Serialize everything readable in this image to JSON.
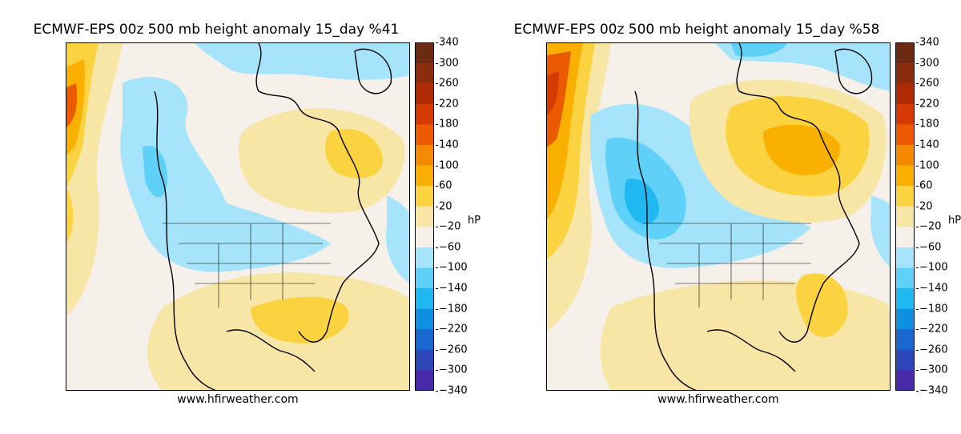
{
  "panels": [
    {
      "title": "ECMWF-EPS 00z 500 mb height anomaly 15_day %41",
      "credit": "www.hfirweather.com",
      "unit": "hP"
    },
    {
      "title": "ECMWF-EPS 00z 500 mb height anomaly 15_day %58",
      "credit": "www.hfirweather.com",
      "unit": "hP"
    }
  ],
  "colorbar": {
    "ticks": [
      "340",
      "300",
      "260",
      "220",
      "180",
      "140",
      "100",
      "60",
      "20",
      "−20",
      "−60",
      "−100",
      "−140",
      "−180",
      "−220",
      "−260",
      "−300",
      "−340"
    ],
    "colors": [
      "#6b2a12",
      "#8a2c0e",
      "#b02a05",
      "#d53a02",
      "#ec5a00",
      "#f58a00",
      "#f9b000",
      "#fbd23f",
      "#f8e6a6",
      "#f5f0ea",
      "#a6e4fb",
      "#5fd0f7",
      "#1fb8f0",
      "#0e8fe0",
      "#1a68cf",
      "#2d46b8",
      "#4a2aa8",
      "#6a1a9a"
    ]
  },
  "colors": {
    "neutral": "#f5f0ea",
    "light_yellow": "#f8e6a6",
    "yellow": "#fbd23f",
    "orange": "#f9b000",
    "dark_orange": "#ec5a00",
    "red": "#d53a02",
    "light_blue": "#a6e4fb",
    "blue": "#5fd0f7",
    "mid_blue": "#1fb8f0"
  }
}
